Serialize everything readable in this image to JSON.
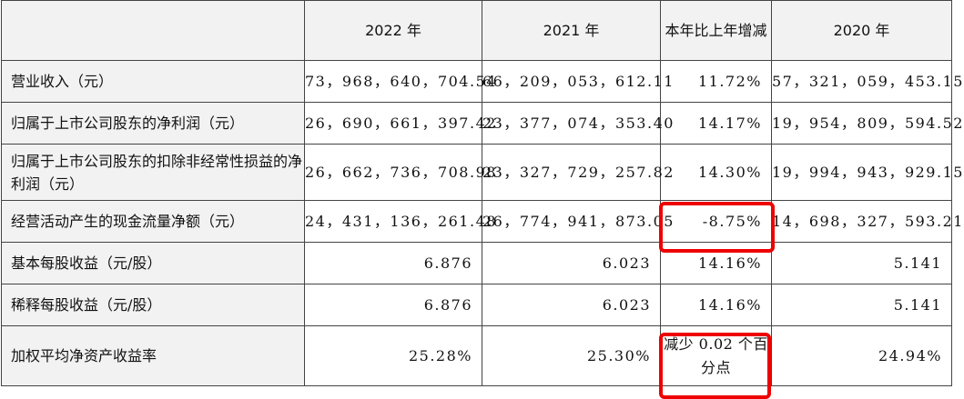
{
  "table": {
    "headers": [
      "",
      "2022 年",
      "2021 年",
      "本年比上年增减",
      "2020 年"
    ],
    "rows": [
      {
        "label": "营业收入（元）",
        "y2022": "73，968，640，704.54",
        "y2021": "66，209，053，612.11",
        "change": "11.72%",
        "y2020": "57，321，059，453.15"
      },
      {
        "label": "归属于上市公司股东的净利润（元）",
        "y2022": "26，690，661，397.42",
        "y2021": "23，377，074，353.40",
        "change": "14.17%",
        "y2020": "19，954，809，594.52"
      },
      {
        "label": "归属于上市公司股东的扣除非经常性损益的净利润（元）",
        "y2022": "26，662，736，708.98",
        "y2021": "23，327，729，257.82",
        "change": "14.30%",
        "y2020": "19，994，943，929.15"
      },
      {
        "label": "经营活动产生的现金流量净额（元）",
        "y2022": "24，431，136，261.48",
        "y2021": "26，774，941，873.05",
        "change": "-8.75%",
        "y2020": "14，698，327，593.21"
      },
      {
        "label": "基本每股收益（元/股）",
        "y2022": "6.876",
        "y2021": "6.023",
        "change": "14.16%",
        "y2020": "5.141"
      },
      {
        "label": "稀释每股收益（元/股）",
        "y2022": "6.876",
        "y2021": "6.023",
        "change": "14.16%",
        "y2020": "5.141"
      },
      {
        "label": "加权平均净资产收益率",
        "y2022": "25.28%",
        "y2021": "25.30%",
        "change": "减少 0.02 个百分点",
        "y2020": "24.94%"
      }
    ]
  },
  "highlight": {
    "color": "#ee0000"
  }
}
